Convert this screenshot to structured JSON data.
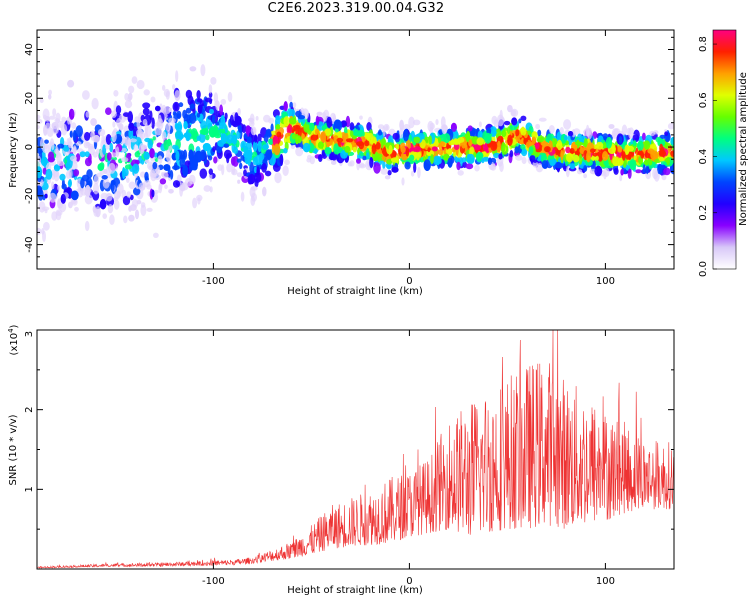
{
  "title": "C2E6.2023.319.00.04.G32",
  "chart_data": [
    {
      "type": "heatmap",
      "title": "",
      "xlabel": "Height of straight line (km)",
      "ylabel": "Frequency (Hz)",
      "xlim": [
        -190,
        135
      ],
      "ylim": [
        -50,
        48
      ],
      "xticks": [
        -100,
        0,
        100
      ],
      "yticks": [
        -40,
        -20,
        0,
        20,
        40
      ],
      "grid": false,
      "colorbar": {
        "label": "Normalized spectral amplitude",
        "range": [
          0.0,
          0.85
        ],
        "ticks": [
          "0.0",
          "0.2",
          "0.4",
          "0.6",
          "0.8"
        ],
        "colors": [
          "#ffffff",
          "#d8c8f8",
          "#8800ff",
          "#2200ff",
          "#0044ff",
          "#00c8ff",
          "#00ff80",
          "#66ff00",
          "#e0ff00",
          "#ffa000",
          "#ff2000",
          "#ff0080"
        ]
      },
      "centerline": [
        [
          -190,
          -8
        ],
        [
          -160,
          -6
        ],
        [
          -140,
          -4
        ],
        [
          -120,
          2
        ],
        [
          -100,
          7
        ],
        [
          -90,
          4
        ],
        [
          -80,
          -5
        ],
        [
          -60,
          8
        ],
        [
          -50,
          4
        ],
        [
          -40,
          3
        ],
        [
          -30,
          2
        ],
        [
          -20,
          1
        ],
        [
          -10,
          -3
        ],
        [
          0,
          -1
        ],
        [
          10,
          -1
        ],
        [
          20,
          0
        ],
        [
          40,
          0
        ],
        [
          55,
          5
        ],
        [
          70,
          -1
        ],
        [
          90,
          -2
        ],
        [
          110,
          -3
        ],
        [
          135,
          -2
        ]
      ]
    },
    {
      "type": "line",
      "title": "",
      "xlabel": "Height of straight line (km)",
      "ylabel": "SNR (10 * v/v)",
      "y_multiplier": "(x10",
      "y_multiplier_exp": "4",
      "y_multiplier_close": ")",
      "xlim": [
        -190,
        135
      ],
      "ylim": [
        0,
        3
      ],
      "xticks": [
        -100,
        0,
        100
      ],
      "yticks": [
        1,
        2
      ],
      "ytick_top": "3",
      "grid": false,
      "color": "#ee3333",
      "envelope_x": [
        -190,
        -170,
        -150,
        -130,
        -110,
        -90,
        -80,
        -70,
        -60,
        -50,
        -40,
        -30,
        -20,
        -10,
        0,
        10,
        20,
        30,
        40,
        50,
        60,
        70,
        80,
        90,
        100,
        110,
        120,
        135
      ],
      "envelope_low": [
        0.01,
        0.02,
        0.03,
        0.03,
        0.04,
        0.05,
        0.07,
        0.1,
        0.13,
        0.18,
        0.25,
        0.28,
        0.3,
        0.32,
        0.4,
        0.45,
        0.5,
        0.4,
        0.45,
        0.5,
        0.5,
        0.55,
        0.5,
        0.55,
        0.6,
        0.7,
        0.75,
        0.75
      ],
      "envelope_high": [
        0.03,
        0.05,
        0.07,
        0.08,
        0.1,
        0.12,
        0.15,
        0.25,
        0.35,
        0.55,
        0.8,
        0.9,
        1.0,
        1.15,
        1.25,
        1.4,
        1.9,
        2.1,
        2.3,
        2.45,
        2.6,
        2.7,
        2.4,
        2.25,
        2.0,
        1.85,
        1.65,
        1.6
      ]
    }
  ]
}
